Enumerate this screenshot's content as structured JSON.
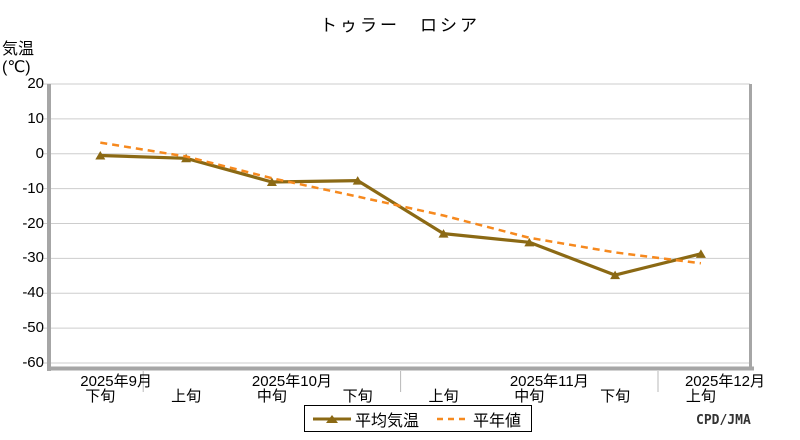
{
  "title": "トゥラー　ロシア",
  "credit": "CPD/JMA",
  "legend": {
    "items": [
      "平均気温",
      "平年値"
    ]
  },
  "chart_data": {
    "type": "line",
    "title": "トゥラー　ロシア",
    "ylabel_lines": [
      "気温",
      "(℃)"
    ],
    "ylim": [
      -60,
      20
    ],
    "yticks": [
      20,
      10,
      0,
      -10,
      -20,
      -30,
      -40,
      -50,
      -60
    ],
    "grid": true,
    "legend_position": "bottom",
    "x_periods": [
      "下旬",
      "上旬",
      "中旬",
      "下旬",
      "上旬",
      "中旬",
      "下旬",
      "上旬"
    ],
    "x_months": [
      {
        "label": "2025年9月",
        "first": 0,
        "last": 0
      },
      {
        "label": "2025年10月",
        "first": 1,
        "last": 3
      },
      {
        "label": "2025年11月",
        "first": 4,
        "last": 6
      },
      {
        "label": "2025年12月",
        "first": 7,
        "last": 7
      }
    ],
    "series": [
      {
        "name": "平均気温",
        "style": "solid",
        "marker": "triangle",
        "color": "#8b6914",
        "values": [
          -0.5,
          -1.3,
          -8.1,
          -7.7,
          -22.9,
          -25.4,
          -34.8,
          -28.7
        ]
      },
      {
        "name": "平年値",
        "style": "dashed",
        "marker": "none",
        "color": "#f6891e",
        "values": [
          3.2,
          -0.8,
          -7.0,
          -12.3,
          -17.7,
          -24.1,
          -28.3,
          -31.4
        ]
      }
    ],
    "colors": {
      "gridline": "#cdcdcd",
      "axis_spine": "#a6a6a6",
      "month_tick": "#b8b8b8",
      "text": "#000000"
    }
  }
}
